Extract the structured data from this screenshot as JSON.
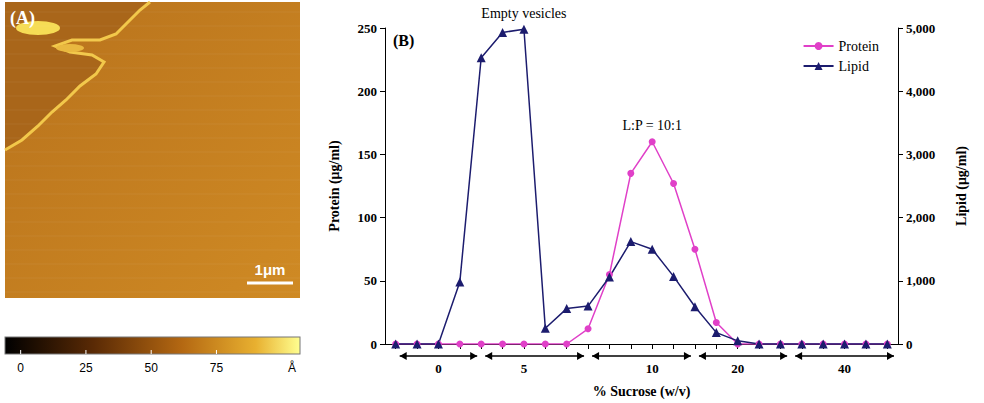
{
  "panel_a": {
    "label": "(A)",
    "scale_bar": "1μm",
    "colorbar": {
      "range": [
        -6,
        107
      ],
      "ticks": [
        0,
        25,
        50,
        75
      ],
      "unit": "Å"
    }
  },
  "chart_data": {
    "type": "line",
    "panel_label": "(B)",
    "x_label": "% Sucrose (w/v)",
    "y_label": "Protein (μg/ml)",
    "y2_label": "Lipid (μg/ml)",
    "categories": [
      null,
      null,
      "0",
      null,
      null,
      null,
      "5",
      null,
      null,
      null,
      null,
      null,
      "10",
      null,
      null,
      null,
      "20",
      null,
      null,
      null,
      null,
      "40",
      null,
      null
    ],
    "series": [
      {
        "name": "Protein",
        "color": "#e040c8",
        "marker": "circle",
        "line_style": "solid",
        "values": [
          0,
          0,
          0,
          0,
          0,
          0,
          0,
          0,
          0,
          12,
          55,
          135,
          160,
          127,
          75,
          17,
          0,
          0,
          0,
          0,
          0,
          0,
          0,
          0
        ]
      },
      {
        "name": "Lipid",
        "color": "#1c1c6e",
        "marker": "triangle",
        "line_style": "solid",
        "axis": "y2",
        "values": [
          0,
          0,
          0,
          980,
          4530,
          4930,
          4980,
          250,
          560,
          600,
          1060,
          1620,
          1500,
          1070,
          590,
          180,
          50,
          0,
          0,
          0,
          0,
          0,
          0,
          0
        ]
      }
    ],
    "ylim": [
      0,
      250
    ],
    "yticks": [
      0,
      50,
      100,
      150,
      200,
      250
    ],
    "y2lim": [
      0,
      5000
    ],
    "y2ticks": [
      0,
      1000,
      2000,
      3000,
      4000,
      5000
    ],
    "grid": false,
    "legend": "upper right",
    "annotations": [
      {
        "text": "Empty vesicles",
        "series": "Lipid"
      },
      {
        "text": "L:P = 10:1",
        "series": "Protein"
      }
    ]
  }
}
